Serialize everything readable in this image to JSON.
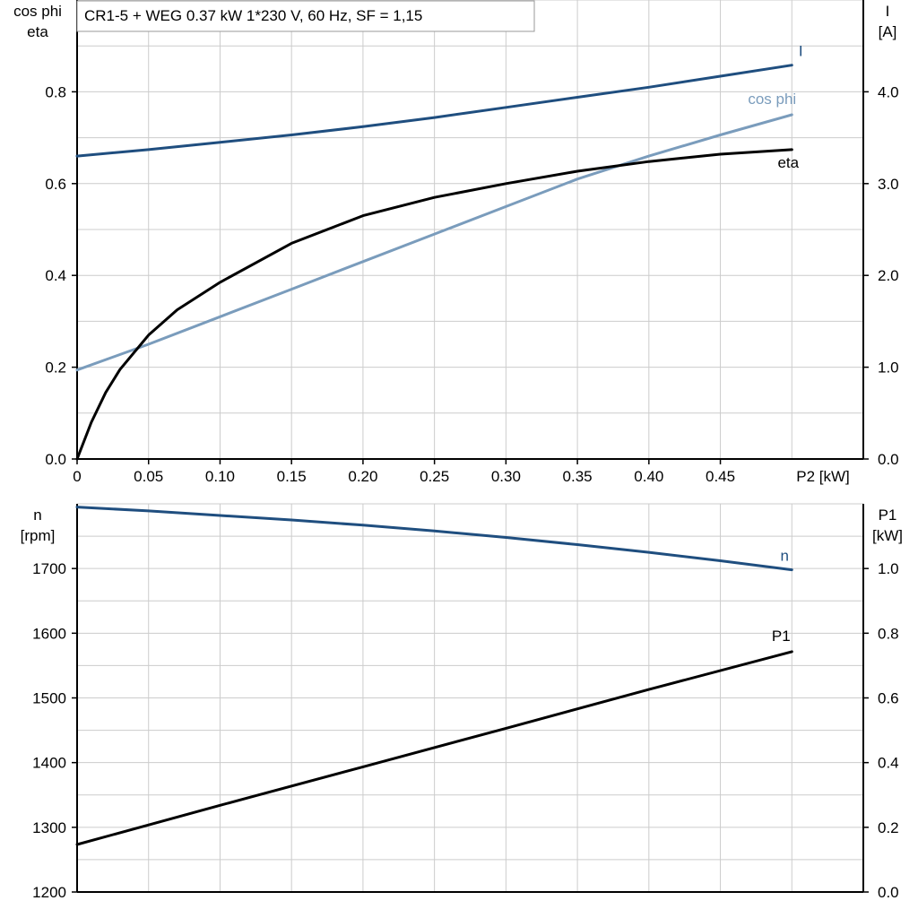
{
  "chart_data": [
    {
      "type": "line",
      "title": "CR1-5 + WEG   0.37 kW   1*230 V, 60 Hz, SF = 1,15",
      "xlabel": "P2 [kW]",
      "xlim": [
        0,
        0.55
      ],
      "xticks": [
        "0",
        "0.05",
        "0.10",
        "0.15",
        "0.20",
        "0.25",
        "0.30",
        "0.35",
        "0.40",
        "0.45"
      ],
      "xtick_values": [
        0,
        0.05,
        0.1,
        0.15,
        0.2,
        0.25,
        0.3,
        0.35,
        0.4,
        0.45
      ],
      "ylabel_left": [
        "cos phi",
        "eta"
      ],
      "ylim_left": [
        0,
        1.0
      ],
      "yticks_left": [
        "0.0",
        "0.2",
        "0.4",
        "0.6",
        "0.8"
      ],
      "ytick_values_left": [
        0,
        0.2,
        0.4,
        0.6,
        0.8
      ],
      "ylabel_right": [
        "I",
        "[A]"
      ],
      "ylim_right": [
        0,
        5.0
      ],
      "yticks_right": [
        "0.0",
        "1.0",
        "2.0",
        "3.0",
        "4.0"
      ],
      "ytick_values_right": [
        0,
        1,
        2,
        3,
        4
      ],
      "grid": true,
      "series": [
        {
          "name": "I",
          "axis": "right",
          "color": "#1f4e7f",
          "x": [
            0,
            0.05,
            0.1,
            0.15,
            0.2,
            0.25,
            0.3,
            0.35,
            0.4,
            0.45,
            0.5
          ],
          "y": [
            3.3,
            3.37,
            3.45,
            3.53,
            3.62,
            3.72,
            3.83,
            3.94,
            4.05,
            4.17,
            4.29
          ]
        },
        {
          "name": "cos phi",
          "axis": "left",
          "color": "#7a9cbc",
          "x": [
            0,
            0.05,
            0.1,
            0.15,
            0.2,
            0.25,
            0.3,
            0.35,
            0.4,
            0.45,
            0.5
          ],
          "y": [
            0.194,
            0.25,
            0.31,
            0.37,
            0.43,
            0.49,
            0.55,
            0.61,
            0.66,
            0.706,
            0.75
          ]
        },
        {
          "name": "eta",
          "axis": "left",
          "color": "#000000",
          "x": [
            0,
            0.01,
            0.02,
            0.03,
            0.05,
            0.07,
            0.1,
            0.15,
            0.2,
            0.25,
            0.3,
            0.35,
            0.4,
            0.45,
            0.5
          ],
          "y": [
            0,
            0.08,
            0.145,
            0.195,
            0.27,
            0.325,
            0.385,
            0.47,
            0.53,
            0.57,
            0.6,
            0.627,
            0.648,
            0.664,
            0.674
          ]
        }
      ]
    },
    {
      "type": "line",
      "xlabel": "",
      "xlim": [
        0,
        0.55
      ],
      "ylabel_left": [
        "n",
        "[rpm]"
      ],
      "ylim_left": [
        1200,
        1800
      ],
      "yticks_left": [
        "1200",
        "1300",
        "1400",
        "1500",
        "1600",
        "1700"
      ],
      "ytick_values_left": [
        1200,
        1300,
        1400,
        1500,
        1600,
        1700
      ],
      "ylabel_right": [
        "P1",
        "[kW]"
      ],
      "ylim_right": [
        0,
        1.2
      ],
      "yticks_right": [
        "0.0",
        "0.2",
        "0.4",
        "0.6",
        "0.8",
        "1.0"
      ],
      "ytick_values_right": [
        0,
        0.2,
        0.4,
        0.6,
        0.8,
        1.0
      ],
      "grid": true,
      "series": [
        {
          "name": "n",
          "axis": "left",
          "color": "#1f4e7f",
          "x": [
            0,
            0.05,
            0.1,
            0.15,
            0.2,
            0.25,
            0.3,
            0.35,
            0.4,
            0.45,
            0.5
          ],
          "y": [
            1795,
            1789,
            1782,
            1775,
            1767,
            1758,
            1748,
            1737,
            1725,
            1712,
            1698
          ]
        },
        {
          "name": "P1",
          "axis": "right",
          "color": "#000000",
          "x": [
            0,
            0.1,
            0.2,
            0.3,
            0.4,
            0.5
          ],
          "y": [
            0.147,
            0.268,
            0.387,
            0.506,
            0.626,
            0.743
          ]
        }
      ]
    }
  ]
}
